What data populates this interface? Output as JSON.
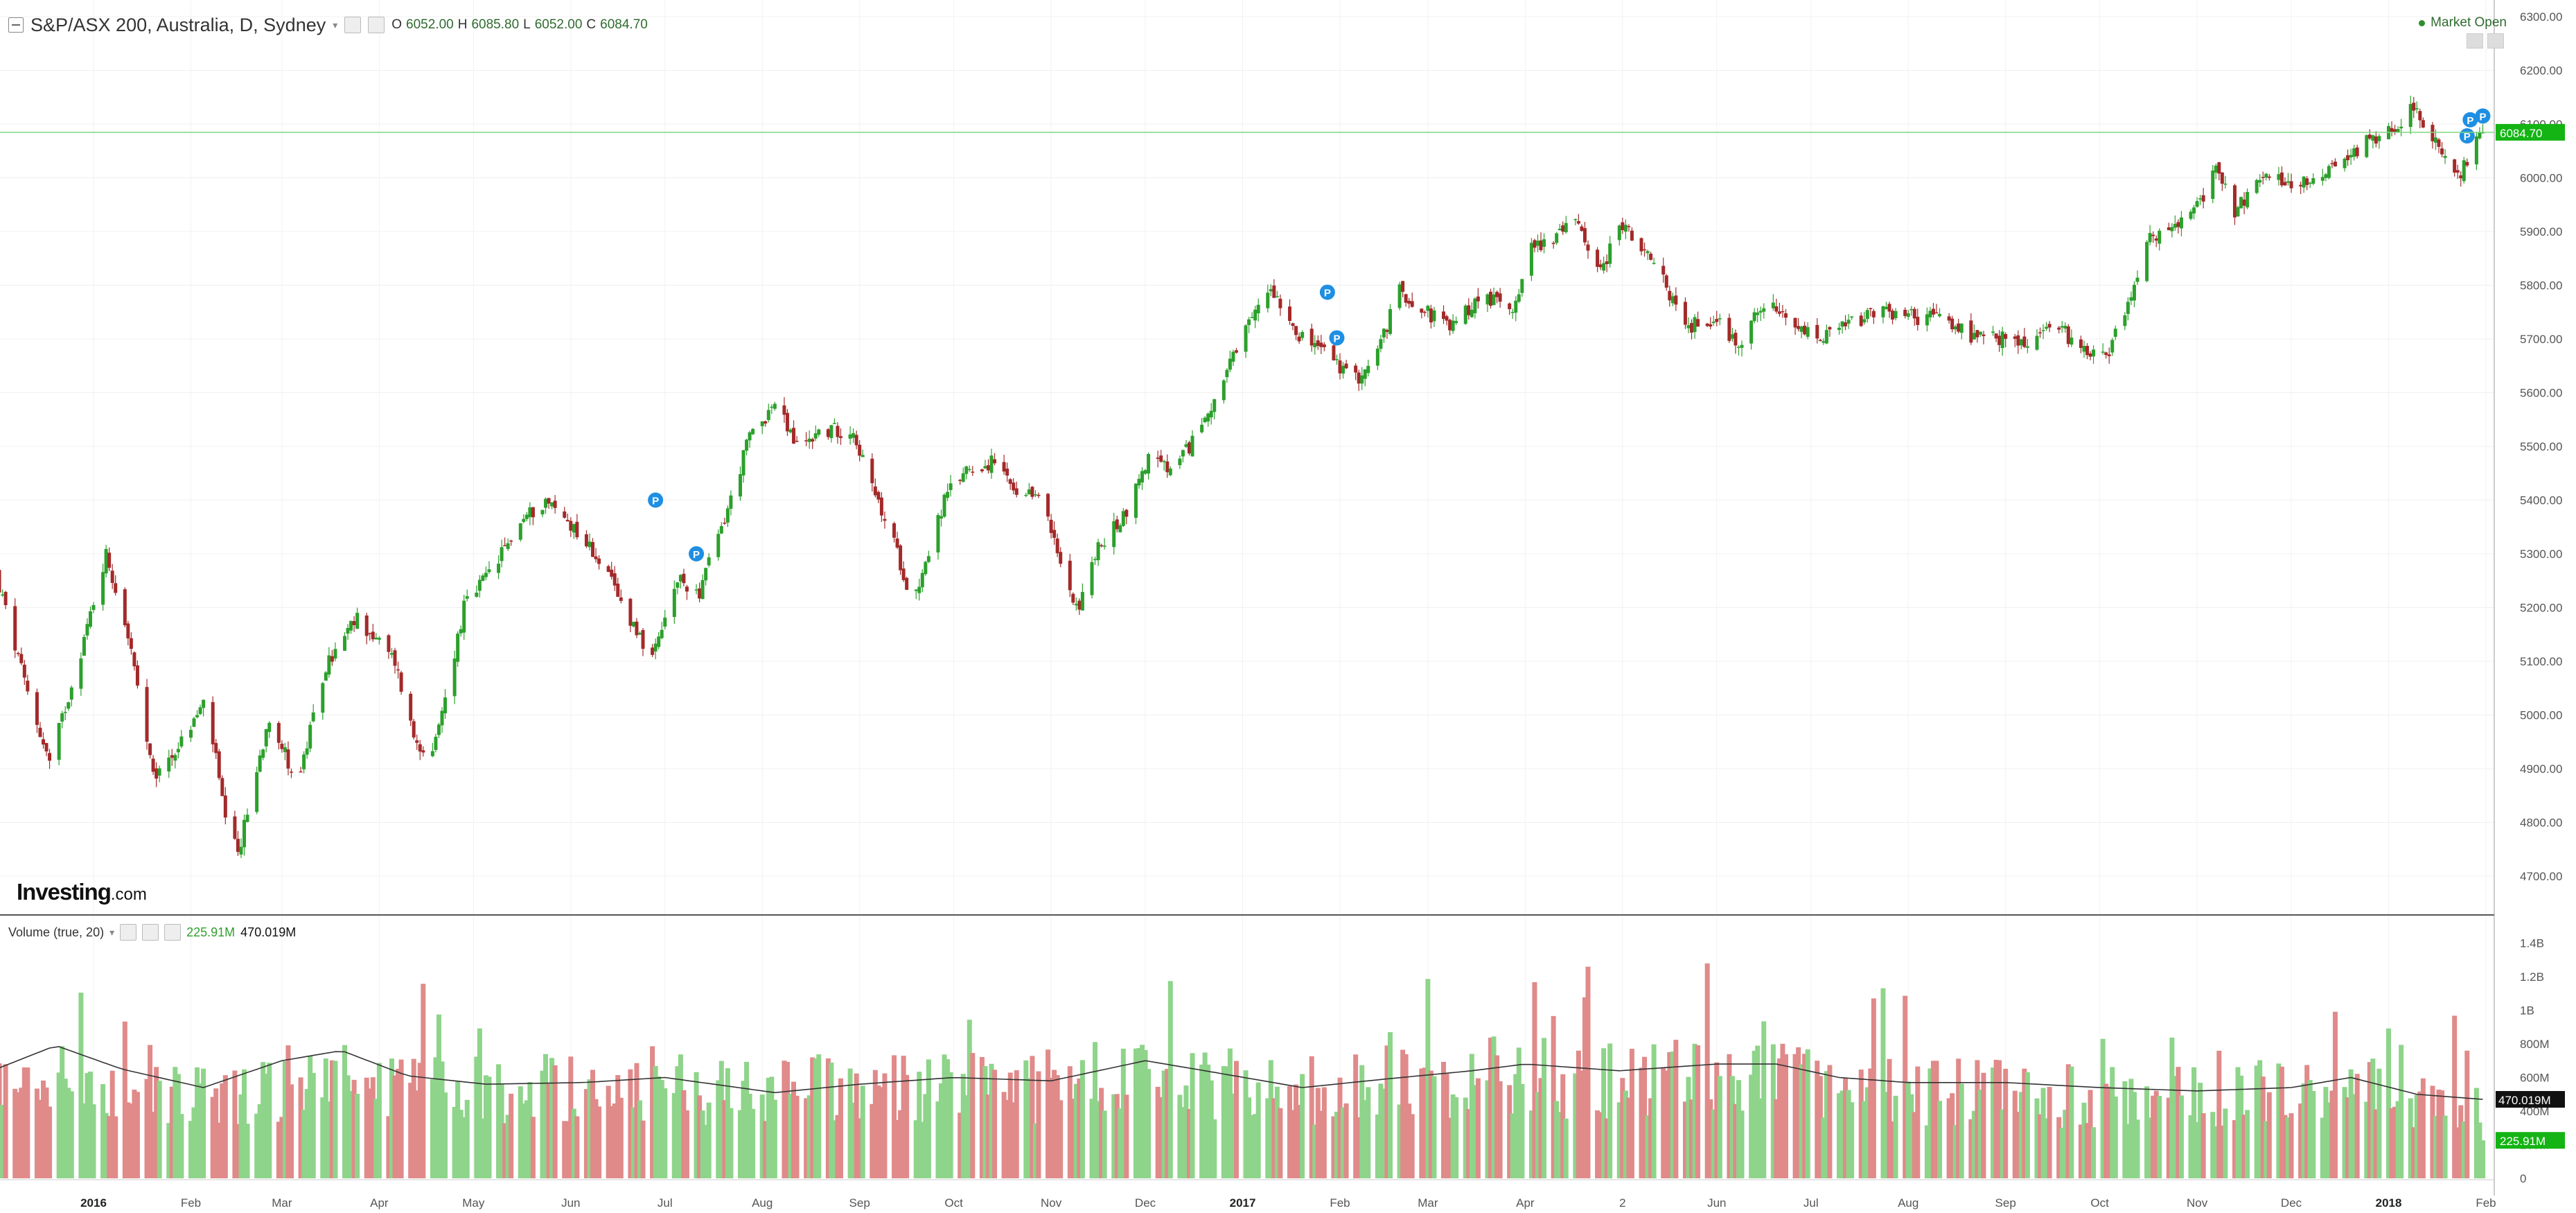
{
  "header": {
    "symbol": "S&P/ASX 200, Australia, D, Sydney",
    "open_label": "O",
    "open": "6052.00",
    "high_label": "H",
    "high": "6085.80",
    "low_label": "L",
    "low": "6052.00",
    "close_label": "C",
    "close": "6084.70",
    "market_status": "Market Open"
  },
  "logo": {
    "brand": "Investing",
    "suffix": ".com"
  },
  "volume_header": {
    "label": "Volume (true, 20)",
    "current": "225.91M",
    "ma": "470.019M"
  },
  "colors": {
    "up": "#2ca02c",
    "down": "#a32a2a",
    "vol_up": "#8ed48a",
    "vol_down": "#e08a8a",
    "last_price": "#13b413",
    "ma_line": "#333333"
  },
  "chart_data": [
    {
      "type": "candlestick",
      "title": "S&P/ASX 200, Australia, D, Sydney",
      "ylim": [
        4650,
        6310
      ],
      "y_ticks": [
        4700,
        4800,
        4900,
        5000,
        5100,
        5200,
        5300,
        5400,
        5500,
        5600,
        5700,
        5800,
        5900,
        6000,
        6100,
        6200,
        6300
      ],
      "y_tick_labels": [
        "4700.00",
        "4800.00",
        "4900.00",
        "5000.00",
        "5100.00",
        "5200.00",
        "5300.00",
        "5400.00",
        "5500.00",
        "5600.00",
        "5700.00",
        "5800.00",
        "5900.00",
        "6000.00",
        "6100.00",
        "6200.00",
        "6300.00"
      ],
      "x_tick_labels": [
        "2016",
        "Feb",
        "Mar",
        "Apr",
        "May",
        "Jun",
        "Jul",
        "Aug",
        "Sep",
        "Oct",
        "Nov",
        "Dec",
        "2017",
        "Feb",
        "Mar",
        "Apr",
        "2",
        "Jun",
        "Jul",
        "Aug",
        "Sep",
        "Oct",
        "Nov",
        "Dec",
        "2018",
        "Feb"
      ],
      "x_tick_dates": [
        "2016-01-01",
        "2016-02-01",
        "2016-03-01",
        "2016-04-01",
        "2016-05-01",
        "2016-06-01",
        "2016-07-01",
        "2016-08-01",
        "2016-09-01",
        "2016-10-01",
        "2016-11-01",
        "2016-12-01",
        "2017-01-01",
        "2017-02-01",
        "2017-03-01",
        "2017-04-01",
        "2017-05-02",
        "2017-06-01",
        "2017-07-01",
        "2017-08-01",
        "2017-09-01",
        "2017-10-01",
        "2017-11-01",
        "2017-12-01",
        "2018-01-01",
        "2018-02-01"
      ],
      "close_path": [
        [
          "2015-12-01",
          5260
        ],
        [
          "2015-12-10",
          5060
        ],
        [
          "2015-12-18",
          4910
        ],
        [
          "2015-12-28",
          5120
        ],
        [
          "2016-01-05",
          5300
        ],
        [
          "2016-01-12",
          5150
        ],
        [
          "2016-01-20",
          4880
        ],
        [
          "2016-01-29",
          4950
        ],
        [
          "2016-02-06",
          5030
        ],
        [
          "2016-02-12",
          4800
        ],
        [
          "2016-02-16",
          4740
        ],
        [
          "2016-02-26",
          5000
        ],
        [
          "2016-03-06",
          4870
        ],
        [
          "2016-03-15",
          5090
        ],
        [
          "2016-03-25",
          5180
        ],
        [
          "2016-04-06",
          5100
        ],
        [
          "2016-04-12",
          4960
        ],
        [
          "2016-04-18",
          4920
        ],
        [
          "2016-04-28",
          5200
        ],
        [
          "2016-05-08",
          5280
        ],
        [
          "2016-05-16",
          5360
        ],
        [
          "2016-05-24",
          5400
        ],
        [
          "2016-06-02",
          5350
        ],
        [
          "2016-06-10",
          5290
        ],
        [
          "2016-06-17",
          5210
        ],
        [
          "2016-06-22",
          5160
        ],
        [
          "2016-06-27",
          5100
        ],
        [
          "2016-07-05",
          5250
        ],
        [
          "2016-07-12",
          5230
        ],
        [
          "2016-07-22",
          5400
        ],
        [
          "2016-07-28",
          5520
        ],
        [
          "2016-08-05",
          5580
        ],
        [
          "2016-08-12",
          5500
        ],
        [
          "2016-08-20",
          5530
        ],
        [
          "2016-08-30",
          5530
        ],
        [
          "2016-09-05",
          5420
        ],
        [
          "2016-09-12",
          5320
        ],
        [
          "2016-09-18",
          5210
        ],
        [
          "2016-09-28",
          5400
        ],
        [
          "2016-10-05",
          5460
        ],
        [
          "2016-10-15",
          5470
        ],
        [
          "2016-10-22",
          5390
        ],
        [
          "2016-10-28",
          5420
        ],
        [
          "2016-11-05",
          5260
        ],
        [
          "2016-11-10",
          5200
        ],
        [
          "2016-11-15",
          5300
        ],
        [
          "2016-11-25",
          5380
        ],
        [
          "2016-12-02",
          5480
        ],
        [
          "2016-12-10",
          5450
        ],
        [
          "2016-12-18",
          5530
        ],
        [
          "2016-12-28",
          5650
        ],
        [
          "2017-01-06",
          5760
        ],
        [
          "2017-01-10",
          5800
        ],
        [
          "2017-01-20",
          5700
        ],
        [
          "2017-01-27",
          5680
        ],
        [
          "2017-02-05",
          5620
        ],
        [
          "2017-02-12",
          5660
        ],
        [
          "2017-02-20",
          5790
        ],
        [
          "2017-03-01",
          5750
        ],
        [
          "2017-03-08",
          5720
        ],
        [
          "2017-03-18",
          5780
        ],
        [
          "2017-03-28",
          5760
        ],
        [
          "2017-04-03",
          5870
        ],
        [
          "2017-04-10",
          5890
        ],
        [
          "2017-04-18",
          5920
        ],
        [
          "2017-04-25",
          5820
        ],
        [
          "2017-05-01",
          5920
        ],
        [
          "2017-05-06",
          5880
        ],
        [
          "2017-05-15",
          5810
        ],
        [
          "2017-05-22",
          5720
        ],
        [
          "2017-05-31",
          5740
        ],
        [
          "2017-06-08",
          5690
        ],
        [
          "2017-06-16",
          5770
        ],
        [
          "2017-06-25",
          5720
        ],
        [
          "2017-07-05",
          5700
        ],
        [
          "2017-07-14",
          5730
        ],
        [
          "2017-07-24",
          5750
        ],
        [
          "2017-08-04",
          5740
        ],
        [
          "2017-08-12",
          5740
        ],
        [
          "2017-08-22",
          5700
        ],
        [
          "2017-09-01",
          5700
        ],
        [
          "2017-09-09",
          5690
        ],
        [
          "2017-09-16",
          5730
        ],
        [
          "2017-09-26",
          5680
        ],
        [
          "2017-10-04",
          5680
        ],
        [
          "2017-10-09",
          5750
        ],
        [
          "2017-10-16",
          5880
        ],
        [
          "2017-10-26",
          5910
        ],
        [
          "2017-11-02",
          5960
        ],
        [
          "2017-11-08",
          6020
        ],
        [
          "2017-11-13",
          5940
        ],
        [
          "2017-11-22",
          6000
        ],
        [
          "2017-12-01",
          5990
        ],
        [
          "2017-12-08",
          6000
        ],
        [
          "2017-12-16",
          6030
        ],
        [
          "2017-12-26",
          6070
        ],
        [
          "2018-01-04",
          6100
        ],
        [
          "2018-01-09",
          6140
        ],
        [
          "2018-01-17",
          6050
        ],
        [
          "2018-01-24",
          6010
        ],
        [
          "2018-01-31",
          6084.7
        ]
      ],
      "last_price": 6084.7,
      "last_price_label": "6084.70"
    },
    {
      "type": "bar",
      "title": "Volume (true, 20)",
      "ylim": [
        0,
        1450000000
      ],
      "y_ticks": [
        0,
        200000000,
        400000000,
        600000000,
        800000000,
        1000000000,
        1200000000,
        1400000000
      ],
      "y_tick_labels": [
        "0",
        "200M",
        "400M",
        "600M",
        "800M",
        "1B",
        "1.2B",
        "1.4B"
      ],
      "volume_level_path": [
        [
          "2015-12-01",
          620000000
        ],
        [
          "2016-01-01",
          600000000
        ],
        [
          "2016-02-15",
          560000000
        ],
        [
          "2016-03-15",
          640000000
        ],
        [
          "2016-04-15",
          560000000
        ],
        [
          "2016-05-15",
          600000000
        ],
        [
          "2016-06-20",
          620000000
        ],
        [
          "2016-07-20",
          560000000
        ],
        [
          "2016-08-20",
          580000000
        ],
        [
          "2016-09-20",
          600000000
        ],
        [
          "2016-10-20",
          560000000
        ],
        [
          "2016-11-15",
          640000000
        ],
        [
          "2016-12-20",
          620000000
        ],
        [
          "2017-01-20",
          560000000
        ],
        [
          "2017-02-20",
          620000000
        ],
        [
          "2017-03-20",
          660000000
        ],
        [
          "2017-04-20",
          640000000
        ],
        [
          "2017-05-20",
          620000000
        ],
        [
          "2017-06-15",
          640000000
        ],
        [
          "2017-07-15",
          560000000
        ],
        [
          "2017-08-15",
          560000000
        ],
        [
          "2017-09-15",
          540000000
        ],
        [
          "2017-10-15",
          520000000
        ],
        [
          "2017-11-15",
          540000000
        ],
        [
          "2017-12-15",
          580000000
        ],
        [
          "2018-01-15",
          500000000
        ],
        [
          "2018-01-31",
          480000000
        ]
      ],
      "volume_ma_path": [
        [
          "2015-12-01",
          650000000
        ],
        [
          "2015-12-20",
          790000000
        ],
        [
          "2016-01-10",
          650000000
        ],
        [
          "2016-02-05",
          540000000
        ],
        [
          "2016-03-01",
          700000000
        ],
        [
          "2016-03-20",
          760000000
        ],
        [
          "2016-04-10",
          610000000
        ],
        [
          "2016-05-05",
          560000000
        ],
        [
          "2016-06-05",
          570000000
        ],
        [
          "2016-07-01",
          600000000
        ],
        [
          "2016-08-05",
          510000000
        ],
        [
          "2016-09-01",
          560000000
        ],
        [
          "2016-10-01",
          600000000
        ],
        [
          "2016-11-01",
          580000000
        ],
        [
          "2016-12-01",
          700000000
        ],
        [
          "2016-12-20",
          640000000
        ],
        [
          "2017-01-20",
          540000000
        ],
        [
          "2017-02-15",
          590000000
        ],
        [
          "2017-03-15",
          640000000
        ],
        [
          "2017-04-01",
          680000000
        ],
        [
          "2017-05-01",
          640000000
        ],
        [
          "2017-06-01",
          680000000
        ],
        [
          "2017-06-20",
          680000000
        ],
        [
          "2017-07-10",
          600000000
        ],
        [
          "2017-08-01",
          570000000
        ],
        [
          "2017-09-01",
          570000000
        ],
        [
          "2017-10-01",
          540000000
        ],
        [
          "2017-11-01",
          520000000
        ],
        [
          "2017-12-01",
          540000000
        ],
        [
          "2017-12-20",
          600000000
        ],
        [
          "2018-01-10",
          500000000
        ],
        [
          "2018-01-31",
          470000000
        ]
      ],
      "current_volume": 225910000,
      "current_volume_label": "225.91M",
      "ma_value": 470019000,
      "ma_value_label": "470.019M"
    }
  ]
}
